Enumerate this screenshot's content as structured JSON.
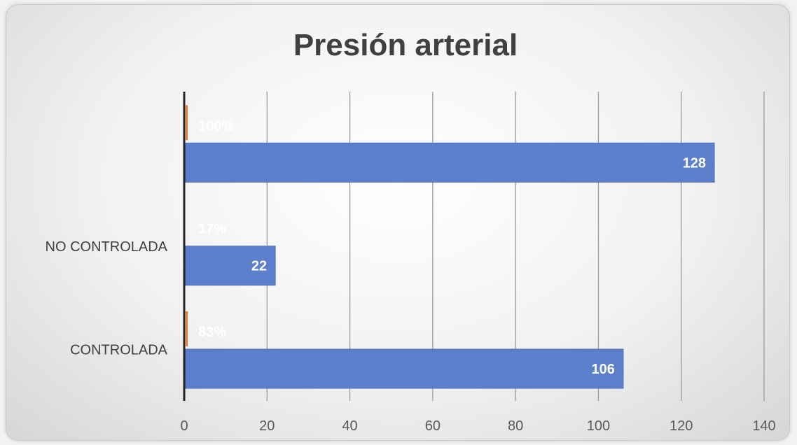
{
  "chart_data": {
    "type": "bar",
    "orientation": "horizontal",
    "title": "Presión arterial",
    "categories": [
      "CONTROLADA",
      "NO CONTROLADA",
      ""
    ],
    "series": [
      {
        "values": [
          106,
          22,
          128
        ],
        "color": "#5b7fcb"
      },
      {
        "values": [
          0.83,
          0.17,
          1.0
        ],
        "color": "#ed7d31",
        "labels": [
          "83%",
          "17%",
          "100%"
        ]
      }
    ],
    "xlim": [
      0,
      140
    ],
    "xticks": [
      0,
      20,
      40,
      60,
      80,
      100,
      120,
      140
    ],
    "grid": true,
    "legend": "none"
  }
}
